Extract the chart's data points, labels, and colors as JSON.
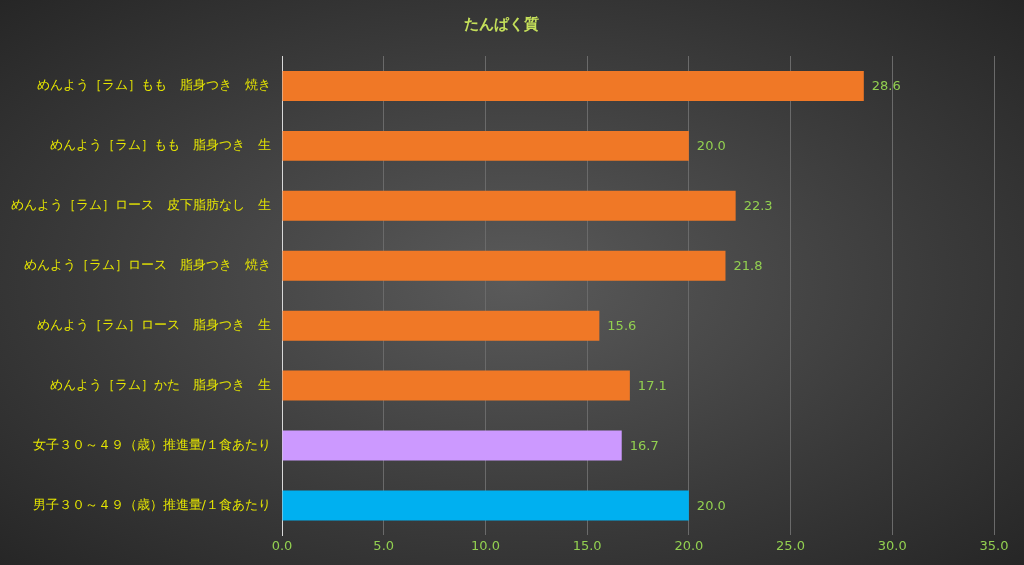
{
  "chart_data": {
    "type": "bar",
    "orientation": "horizontal",
    "title": "たんぱく質",
    "categories": [
      "めんよう［ラム］もも　脂身つき　焼き",
      "めんよう［ラム］もも　脂身つき　生",
      "めんよう［ラム］ロース　皮下脂肪なし　生",
      "めんよう［ラム］ロース　脂身つき　焼き",
      "めんよう［ラム］ロース　脂身つき　生",
      "めんよう［ラム］かた　脂身つき　生",
      "女子３０～４９（歳）推進量/１食あたり",
      "男子３０～４９（歳）推進量/１食あたり"
    ],
    "values": [
      28.6,
      20.0,
      22.3,
      21.8,
      15.6,
      17.1,
      16.7,
      20.0
    ],
    "value_labels": [
      "28.6",
      "20.0",
      "22.3",
      "21.8",
      "15.6",
      "17.1",
      "16.7",
      "20.0"
    ],
    "colors": [
      "#f07826",
      "#f07826",
      "#f07826",
      "#f07826",
      "#f07826",
      "#f07826",
      "#cc99ff",
      "#00b0f0"
    ],
    "xlim": [
      0,
      35
    ],
    "xticks": [
      {
        "value": 0,
        "label": "0.0"
      },
      {
        "value": 5,
        "label": "5.0"
      },
      {
        "value": 10,
        "label": "10.0"
      },
      {
        "value": 15,
        "label": "15.0"
      },
      {
        "value": 20,
        "label": "20.0"
      },
      {
        "value": 25,
        "label": "25.0"
      },
      {
        "value": 30,
        "label": "30.0"
      },
      {
        "value": 35,
        "label": "35.0"
      }
    ],
    "grid": "x",
    "legend": false
  }
}
